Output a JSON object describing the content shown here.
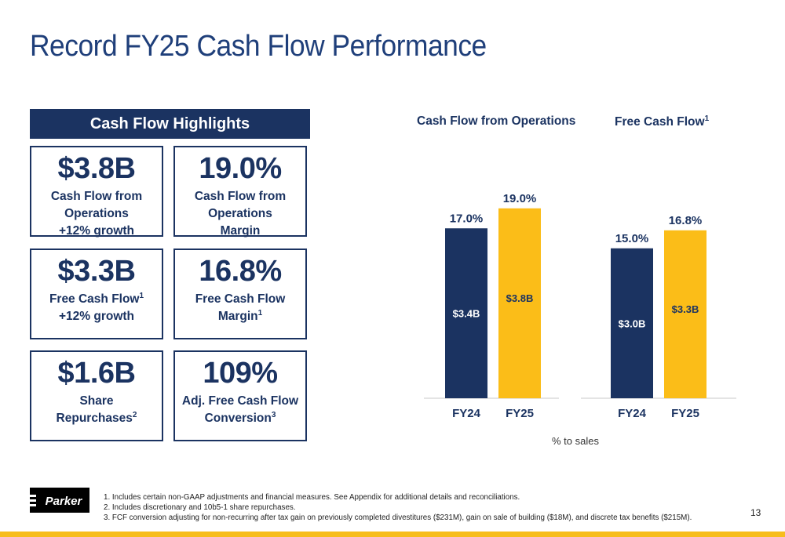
{
  "slide": {
    "title": "Record FY25 Cash Flow Performance",
    "page_number": "13"
  },
  "highlights": {
    "header": "Cash Flow Highlights",
    "tiles": [
      {
        "value": "$3.8B",
        "lines": [
          "Cash Flow from",
          "Operations",
          "+12% growth"
        ]
      },
      {
        "value": "19.0%",
        "lines": [
          "Cash Flow from",
          "Operations",
          "Margin"
        ]
      },
      {
        "value": "$3.3B",
        "lines": [
          "Free Cash Flow",
          "+12% growth"
        ],
        "sup_line1": "1"
      },
      {
        "value": "16.8%",
        "lines": [
          "Free Cash Flow",
          "Margin"
        ],
        "sup_line2": "1"
      },
      {
        "value": "$1.6B",
        "lines": [
          "Share",
          "Repurchases"
        ],
        "sup_line2": "2"
      },
      {
        "value": "109%",
        "lines": [
          "Adj. Free Cash Flow",
          "Conversion"
        ],
        "sup_line2": "3"
      }
    ]
  },
  "chart_note": "% to sales",
  "colors": {
    "navy": "#1b3361",
    "gold": "#fbbd18",
    "title": "#1f3f7a"
  },
  "chart_data": [
    {
      "type": "bar",
      "title": "Cash Flow from Operations",
      "categories": [
        "FY24",
        "FY25"
      ],
      "values": [
        17.0,
        19.0
      ],
      "value_labels": [
        "17.0%",
        "19.0%"
      ],
      "inner_labels": [
        "$3.4B",
        "$3.8B"
      ],
      "colors": [
        "#1b3361",
        "#fbbd18"
      ]
    },
    {
      "type": "bar",
      "title": "Free Cash Flow",
      "title_sup": "1",
      "categories": [
        "FY24",
        "FY25"
      ],
      "values": [
        15.0,
        16.8
      ],
      "value_labels": [
        "15.0%",
        "16.8%"
      ],
      "inner_labels": [
        "$3.0B",
        "$3.3B"
      ],
      "colors": [
        "#1b3361",
        "#fbbd18"
      ]
    }
  ],
  "footnotes": [
    "1. Includes certain non-GAAP adjustments and financial measures. See Appendix for additional details and reconciliations.",
    "2. Includes discretionary and 10b5-1 share repurchases.",
    "3. FCF conversion adjusting for non-recurring after tax gain on previously completed divestitures ($231M), gain on sale of building ($18M), and discrete tax benefits ($215M)."
  ],
  "logo": {
    "text": "Parker",
    "icon": "parker-logo-icon"
  }
}
